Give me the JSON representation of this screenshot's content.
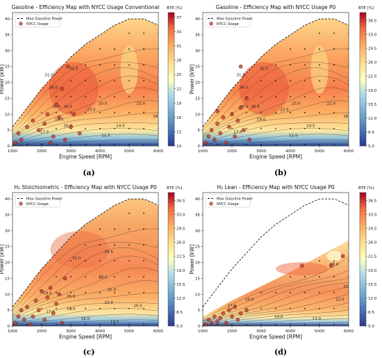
{
  "chart_data": [
    {
      "type": "heatmap",
      "title": "Gasoline - Efficiency Map with NYCC Usage Conventional",
      "caption": "(a)",
      "xlabel": "Engine Speed [RPM]",
      "ylabel": "Power [kW]",
      "xlim": [
        1000,
        6000
      ],
      "ylim": [
        0,
        42
      ],
      "xticks": [
        "1000",
        "2000",
        "3000",
        "4000",
        "5000",
        "6000"
      ],
      "yticks": [
        "0",
        "5",
        "10",
        "15",
        "20",
        "25",
        "30",
        "35",
        "40"
      ],
      "colorbar": {
        "label": "BTE [%]",
        "min": 10,
        "max": 38,
        "ticks": [
          "10",
          "13",
          "16",
          "19",
          "22",
          "25",
          "28",
          "31",
          "34",
          "37"
        ]
      },
      "legend": {
        "position": "top-left",
        "entries": [
          "Max Gasoline Power",
          "NYCC Usage"
        ]
      },
      "contour_labels": [
        {
          "text": "31.0",
          "rpm": 2250,
          "kw": 22
        },
        {
          "text": "32.5",
          "rpm": 3100,
          "kw": 24
        },
        {
          "text": "34.0",
          "rpm": 2400,
          "kw": 18
        },
        {
          "text": "28.0",
          "rpm": 2500,
          "kw": 12
        },
        {
          "text": "26.5",
          "rpm": 2900,
          "kw": 12
        },
        {
          "text": "25.0",
          "rpm": 4100,
          "kw": 13
        },
        {
          "text": "23.5",
          "rpm": 3700,
          "kw": 11
        },
        {
          "text": "22.0",
          "rpm": 5400,
          "kw": 13
        },
        {
          "text": "19.0",
          "rpm": 2600,
          "kw": 8
        },
        {
          "text": "20.0",
          "rpm": 2900,
          "kw": 6
        },
        {
          "text": "17.5",
          "rpm": 2100,
          "kw": 4
        },
        {
          "text": "14.5",
          "rpm": 4700,
          "kw": 6
        },
        {
          "text": "16",
          "rpm": 5900,
          "kw": 9
        },
        {
          "text": "11.5",
          "rpm": 4200,
          "kw": 3
        }
      ],
      "max_power_line": {
        "rpm": [
          1000,
          1500,
          2000,
          2500,
          3000,
          3500,
          4000,
          4500,
          5000,
          5500,
          6000
        ],
        "kw": [
          6,
          12,
          18,
          23,
          28,
          32,
          35,
          38,
          40,
          40,
          38
        ]
      },
      "nycc_points": [
        {
          "rpm": 1100,
          "kw": 1
        },
        {
          "rpm": 1200,
          "kw": 4
        },
        {
          "rpm": 1300,
          "kw": 2
        },
        {
          "rpm": 1500,
          "kw": 6
        },
        {
          "rpm": 1700,
          "kw": 8
        },
        {
          "rpm": 1900,
          "kw": 5
        },
        {
          "rpm": 2100,
          "kw": 7
        },
        {
          "rpm": 2200,
          "kw": 10
        },
        {
          "rpm": 2400,
          "kw": 3
        },
        {
          "rpm": 2500,
          "kw": 13
        },
        {
          "rpm": 2600,
          "kw": 9
        },
        {
          "rpm": 2800,
          "kw": 2
        },
        {
          "rpm": 2900,
          "kw": 25
        },
        {
          "rpm": 3000,
          "kw": 6
        },
        {
          "rpm": 3100,
          "kw": 10
        },
        {
          "rpm": 3300,
          "kw": 4
        },
        {
          "rpm": 2700,
          "kw": 18
        },
        {
          "rpm": 2300,
          "kw": 1
        }
      ]
    },
    {
      "type": "heatmap",
      "title": "Gasoline - Efficiency Map with NYCC Usage P0",
      "caption": "(b)",
      "xlabel": "Engine Speed [RPM]",
      "ylabel": "Power [kW]",
      "xlim": [
        1000,
        6000
      ],
      "ylim": [
        0,
        42
      ],
      "xticks": [
        "1000",
        "2000",
        "3000",
        "4000",
        "5000",
        "6000"
      ],
      "yticks": [
        "0",
        "5",
        "10",
        "15",
        "20",
        "25",
        "30",
        "35",
        "40"
      ],
      "colorbar": {
        "label": "BTE [%]",
        "min": 5,
        "max": 38.5,
        "ticks": [
          "5.0",
          "8.5",
          "12.0",
          "15.5",
          "19.0",
          "22.5",
          "26.0",
          "29.5",
          "33.0",
          "36.5"
        ]
      },
      "legend": {
        "position": "top-left",
        "entries": [
          "Max Gasoline Power",
          "NYCC Usage"
        ]
      },
      "contour_labels": [
        {
          "text": "31.0",
          "rpm": 2300,
          "kw": 22
        },
        {
          "text": "32.5",
          "rpm": 3100,
          "kw": 24
        },
        {
          "text": "34.0",
          "rpm": 2400,
          "kw": 18
        },
        {
          "text": "28.0",
          "rpm": 2400,
          "kw": 12
        },
        {
          "text": "26.5",
          "rpm": 2800,
          "kw": 12
        },
        {
          "text": "25.0",
          "rpm": 4200,
          "kw": 13
        },
        {
          "text": "23.5",
          "rpm": 3800,
          "kw": 11
        },
        {
          "text": "22.0",
          "rpm": 5400,
          "kw": 13
        },
        {
          "text": "19.0",
          "rpm": 3000,
          "kw": 8
        },
        {
          "text": "17.5",
          "rpm": 2200,
          "kw": 4
        },
        {
          "text": "14.5",
          "rpm": 4700,
          "kw": 6
        },
        {
          "text": "16",
          "rpm": 5900,
          "kw": 9
        },
        {
          "text": "11.5",
          "rpm": 4100,
          "kw": 3
        }
      ],
      "max_power_line": {
        "rpm": [
          1000,
          1500,
          2000,
          2500,
          3000,
          3500,
          4000,
          4500,
          5000,
          5500,
          6000
        ],
        "kw": [
          6,
          12,
          18,
          23,
          28,
          32,
          35,
          38,
          40,
          40,
          38
        ]
      },
      "nycc_points": [
        {
          "rpm": 1100,
          "kw": 1
        },
        {
          "rpm": 1200,
          "kw": 3
        },
        {
          "rpm": 1300,
          "kw": 5
        },
        {
          "rpm": 1400,
          "kw": 2
        },
        {
          "rpm": 1500,
          "kw": 7
        },
        {
          "rpm": 1600,
          "kw": 4
        },
        {
          "rpm": 1700,
          "kw": 9
        },
        {
          "rpm": 1800,
          "kw": 1
        },
        {
          "rpm": 1900,
          "kw": 6
        },
        {
          "rpm": 2000,
          "kw": 10
        },
        {
          "rpm": 2100,
          "kw": 3
        },
        {
          "rpm": 2200,
          "kw": 8
        },
        {
          "rpm": 2300,
          "kw": 12
        },
        {
          "rpm": 2400,
          "kw": 5
        },
        {
          "rpm": 2500,
          "kw": 15
        },
        {
          "rpm": 2600,
          "kw": 2
        },
        {
          "rpm": 2300,
          "kw": 25
        },
        {
          "rpm": 1500,
          "kw": 11
        }
      ]
    },
    {
      "type": "heatmap",
      "title": "H₂ Stoichiometric - Efficiency Map with NYCC Usage P0",
      "caption": "(c)",
      "xlabel": "Engine Speed [RPM]",
      "ylabel": "Power [kW]",
      "xlim": [
        1000,
        6000
      ],
      "ylim": [
        0,
        42
      ],
      "xticks": [
        "1000",
        "2000",
        "3000",
        "4000",
        "5000",
        "6000"
      ],
      "yticks": [
        "0",
        "5",
        "10",
        "15",
        "20",
        "25",
        "30",
        "35",
        "40"
      ],
      "colorbar": {
        "label": "BTE [%]",
        "min": 5,
        "max": 38.5,
        "ticks": [
          "5.0",
          "8.5",
          "12.0",
          "15.5",
          "19.0",
          "22.5",
          "26.0",
          "29.5",
          "33.0",
          "36.5"
        ]
      },
      "legend": {
        "position": "top-left",
        "entries": [
          "Max Gasoline Power",
          "NYCC Usage"
        ]
      },
      "contour_labels": [
        {
          "text": "31.0",
          "rpm": 3200,
          "kw": 21
        },
        {
          "text": "29.5",
          "rpm": 4300,
          "kw": 23
        },
        {
          "text": "28.0",
          "rpm": 4100,
          "kw": 15
        },
        {
          "text": "26.5",
          "rpm": 3000,
          "kw": 9
        },
        {
          "text": "25.0",
          "rpm": 4400,
          "kw": 11
        },
        {
          "text": "22.0",
          "rpm": 4300,
          "kw": 7
        },
        {
          "text": "20.5",
          "rpm": 5300,
          "kw": 6
        },
        {
          "text": "19.0",
          "rpm": 3000,
          "kw": 5
        },
        {
          "text": "17.5",
          "rpm": 2300,
          "kw": 4
        },
        {
          "text": "16.0",
          "rpm": 3500,
          "kw": 2
        },
        {
          "text": "14.5",
          "rpm": 4500,
          "kw": 1
        },
        {
          "text": "29.5",
          "rpm": 2200,
          "kw": 10
        }
      ],
      "max_power_line": {
        "rpm": [
          1000,
          1500,
          2000,
          2500,
          3000,
          3500,
          4000,
          4500,
          5000,
          5500,
          6000
        ],
        "kw": [
          6,
          12,
          18,
          23,
          28,
          32,
          35,
          38,
          40,
          40,
          38
        ]
      },
      "nycc_points": [
        {
          "rpm": 1100,
          "kw": 1
        },
        {
          "rpm": 1200,
          "kw": 3
        },
        {
          "rpm": 1300,
          "kw": 5
        },
        {
          "rpm": 1400,
          "kw": 2
        },
        {
          "rpm": 1500,
          "kw": 6
        },
        {
          "rpm": 1700,
          "kw": 3
        },
        {
          "rpm": 1800,
          "kw": 8
        },
        {
          "rpm": 1900,
          "kw": 5
        },
        {
          "rpm": 2000,
          "kw": 11
        },
        {
          "rpm": 2100,
          "kw": 2
        },
        {
          "rpm": 2200,
          "kw": 9
        },
        {
          "rpm": 2300,
          "kw": 12
        },
        {
          "rpm": 2400,
          "kw": 4
        },
        {
          "rpm": 2500,
          "kw": 7
        },
        {
          "rpm": 2600,
          "kw": 10
        },
        {
          "rpm": 2700,
          "kw": 1
        },
        {
          "rpm": 2800,
          "kw": 15
        },
        {
          "rpm": 1600,
          "kw": 0.5
        }
      ]
    },
    {
      "type": "heatmap",
      "title": "H₂ Lean - Efficiency Map with NYCC Usage P0",
      "caption": "(d)",
      "xlabel": "Engine Speed [RPM]",
      "ylabel": "Power [kW]",
      "xlim": [
        1000,
        6000
      ],
      "ylim": [
        0,
        42
      ],
      "xticks": [
        "1000",
        "2000",
        "3000",
        "4000",
        "5000",
        "6000"
      ],
      "yticks": [
        "0",
        "5",
        "10",
        "15",
        "20",
        "25",
        "30",
        "35",
        "40"
      ],
      "colorbar": {
        "label": "BTE [%]",
        "min": 5,
        "max": 38.5,
        "ticks": [
          "5.0",
          "8.5",
          "12.0",
          "15.5",
          "19.0",
          "22.5",
          "26.0",
          "29.5",
          "33.0",
          "36.5"
        ]
      },
      "legend": {
        "position": "top-left",
        "entries": [
          "Max Gasoline Power",
          "NYCC Usage"
        ]
      },
      "contour_labels": [
        {
          "text": "28.0",
          "rpm": 5500,
          "kw": 19
        },
        {
          "text": "25.0",
          "rpm": 2600,
          "kw": 8
        },
        {
          "text": "27.0",
          "rpm": 2000,
          "kw": 6
        },
        {
          "text": "25",
          "rpm": 5900,
          "kw": 12
        },
        {
          "text": "22.0",
          "rpm": 5700,
          "kw": 8
        },
        {
          "text": "19.0",
          "rpm": 3600,
          "kw": 2.5
        },
        {
          "text": "13.0",
          "rpm": 4900,
          "kw": 2
        }
      ],
      "max_power_line": {
        "rpm": [
          1000,
          1500,
          2000,
          2500,
          3000,
          3500,
          4000,
          4500,
          5000,
          5500,
          6000
        ],
        "kw": [
          6,
          12,
          18,
          23,
          28,
          32,
          35,
          38,
          40,
          40,
          38
        ]
      },
      "nycc_points": [
        {
          "rpm": 1100,
          "kw": 0.5
        },
        {
          "rpm": 1200,
          "kw": 2
        },
        {
          "rpm": 1300,
          "kw": 1
        },
        {
          "rpm": 1400,
          "kw": 3
        },
        {
          "rpm": 1500,
          "kw": 1.5
        },
        {
          "rpm": 1600,
          "kw": 2.5
        },
        {
          "rpm": 1700,
          "kw": 4
        },
        {
          "rpm": 1800,
          "kw": 1
        },
        {
          "rpm": 1900,
          "kw": 5
        },
        {
          "rpm": 2000,
          "kw": 3
        },
        {
          "rpm": 2100,
          "kw": 6
        },
        {
          "rpm": 2200,
          "kw": 2
        },
        {
          "rpm": 2300,
          "kw": 4
        },
        {
          "rpm": 2500,
          "kw": 5
        },
        {
          "rpm": 4400,
          "kw": 19
        },
        {
          "rpm": 5400,
          "kw": 19
        },
        {
          "rpm": 5800,
          "kw": 22
        }
      ]
    }
  ]
}
